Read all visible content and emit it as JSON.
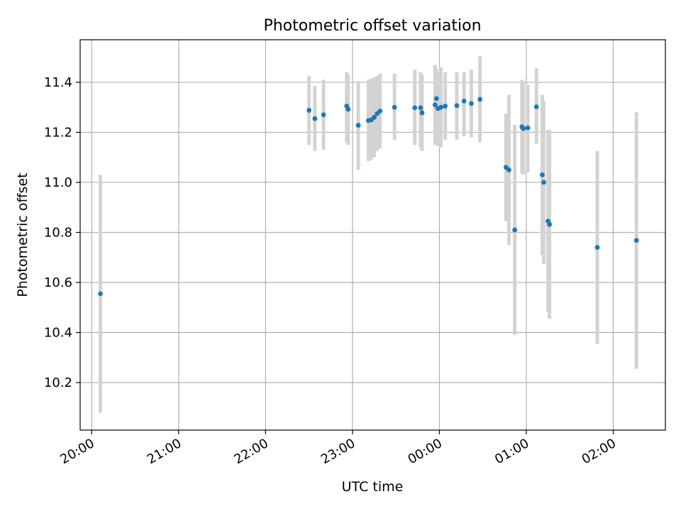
{
  "chart_data": {
    "type": "scatter",
    "title": "Photometric offset variation",
    "xlabel": "UTC time",
    "ylabel": "Photometric offset",
    "x_tick_labels": [
      "20:00",
      "21:00",
      "22:00",
      "23:00",
      "00:00",
      "01:00",
      "02:00"
    ],
    "y_tick_labels": [
      "10.2",
      "10.4",
      "10.6",
      "10.8",
      "11.0",
      "11.2",
      "11.4"
    ],
    "x_ticks": [
      "20:00",
      "21:00",
      "22:00",
      "23:00",
      "00:00",
      "01:00",
      "02:00"
    ],
    "y_ticks": [
      10.2,
      10.4,
      10.6,
      10.8,
      11.0,
      11.2,
      11.4
    ],
    "xlim": [
      "19:52",
      "02:36"
    ],
    "ylim": [
      10.01,
      11.57
    ],
    "grid": true,
    "colors": {
      "points": "#1f77b4",
      "errorbars": "#d3d3d3",
      "grid": "#b0b0b0",
      "axes": "#000000"
    },
    "points": [
      {
        "x": "20:06",
        "y": 10.555,
        "ylo": 10.08,
        "yhi": 11.03
      },
      {
        "x": "22:30",
        "y": 11.288,
        "ylo": 11.15,
        "yhi": 11.425
      },
      {
        "x": "22:34",
        "y": 11.255,
        "ylo": 11.125,
        "yhi": 11.385
      },
      {
        "x": "22:40",
        "y": 11.27,
        "ylo": 11.13,
        "yhi": 11.41
      },
      {
        "x": "22:56",
        "y": 11.305,
        "ylo": 11.16,
        "yhi": 11.44
      },
      {
        "x": "22:57",
        "y": 11.292,
        "ylo": 11.15,
        "yhi": 11.43
      },
      {
        "x": "23:04",
        "y": 11.228,
        "ylo": 11.05,
        "yhi": 11.405
      },
      {
        "x": "23:11",
        "y": 11.247,
        "ylo": 11.085,
        "yhi": 11.41
      },
      {
        "x": "23:13",
        "y": 11.25,
        "ylo": 11.09,
        "yhi": 11.415
      },
      {
        "x": "23:15",
        "y": 11.26,
        "ylo": 11.1,
        "yhi": 11.42
      },
      {
        "x": "23:17",
        "y": 11.275,
        "ylo": 11.125,
        "yhi": 11.425
      },
      {
        "x": "23:19",
        "y": 11.285,
        "ylo": 11.135,
        "yhi": 11.435
      },
      {
        "x": "23:29",
        "y": 11.3,
        "ylo": 11.17,
        "yhi": 11.435
      },
      {
        "x": "23:43",
        "y": 11.298,
        "ylo": 11.15,
        "yhi": 11.45
      },
      {
        "x": "23:47",
        "y": 11.298,
        "ylo": 11.14,
        "yhi": 11.44
      },
      {
        "x": "23:48",
        "y": 11.278,
        "ylo": 11.125,
        "yhi": 11.43
      },
      {
        "x": "23:57",
        "y": 11.31,
        "ylo": 11.15,
        "yhi": 11.47
      },
      {
        "x": "23:58",
        "y": 11.335,
        "ylo": 11.155,
        "yhi": 11.455
      },
      {
        "x": "23:59",
        "y": 11.295,
        "ylo": 11.145,
        "yhi": 11.44
      },
      {
        "x": "00:01",
        "y": 11.3,
        "ylo": 11.14,
        "yhi": 11.46
      },
      {
        "x": "00:04",
        "y": 11.305,
        "ylo": 11.17,
        "yhi": 11.44
      },
      {
        "x": "00:12",
        "y": 11.307,
        "ylo": 11.17,
        "yhi": 11.44
      },
      {
        "x": "00:17",
        "y": 11.325,
        "ylo": 11.185,
        "yhi": 11.44
      },
      {
        "x": "00:22",
        "y": 11.315,
        "ylo": 11.18,
        "yhi": 11.45
      },
      {
        "x": "00:28",
        "y": 11.332,
        "ylo": 11.16,
        "yhi": 11.505
      },
      {
        "x": "00:46",
        "y": 11.06,
        "ylo": 10.845,
        "yhi": 11.275
      },
      {
        "x": "00:48",
        "y": 11.05,
        "ylo": 10.75,
        "yhi": 11.35
      },
      {
        "x": "00:52",
        "y": 10.81,
        "ylo": 10.39,
        "yhi": 11.23
      },
      {
        "x": "00:57",
        "y": 11.222,
        "ylo": 11.035,
        "yhi": 11.41
      },
      {
        "x": "00:58",
        "y": 11.215,
        "ylo": 11.03,
        "yhi": 11.4
      },
      {
        "x": "01:01",
        "y": 11.218,
        "ylo": 11.04,
        "yhi": 11.39
      },
      {
        "x": "01:07",
        "y": 11.302,
        "ylo": 11.155,
        "yhi": 11.455
      },
      {
        "x": "01:11",
        "y": 11.03,
        "ylo": 10.71,
        "yhi": 11.35
      },
      {
        "x": "01:12",
        "y": 11.0,
        "ylo": 10.675,
        "yhi": 11.325
      },
      {
        "x": "01:15",
        "y": 10.845,
        "ylo": 10.48,
        "yhi": 11.21
      },
      {
        "x": "01:16",
        "y": 10.832,
        "ylo": 10.455,
        "yhi": 11.21
      },
      {
        "x": "01:49",
        "y": 10.74,
        "ylo": 10.355,
        "yhi": 11.125
      },
      {
        "x": "02:16",
        "y": 10.768,
        "ylo": 10.255,
        "yhi": 11.28
      }
    ]
  }
}
